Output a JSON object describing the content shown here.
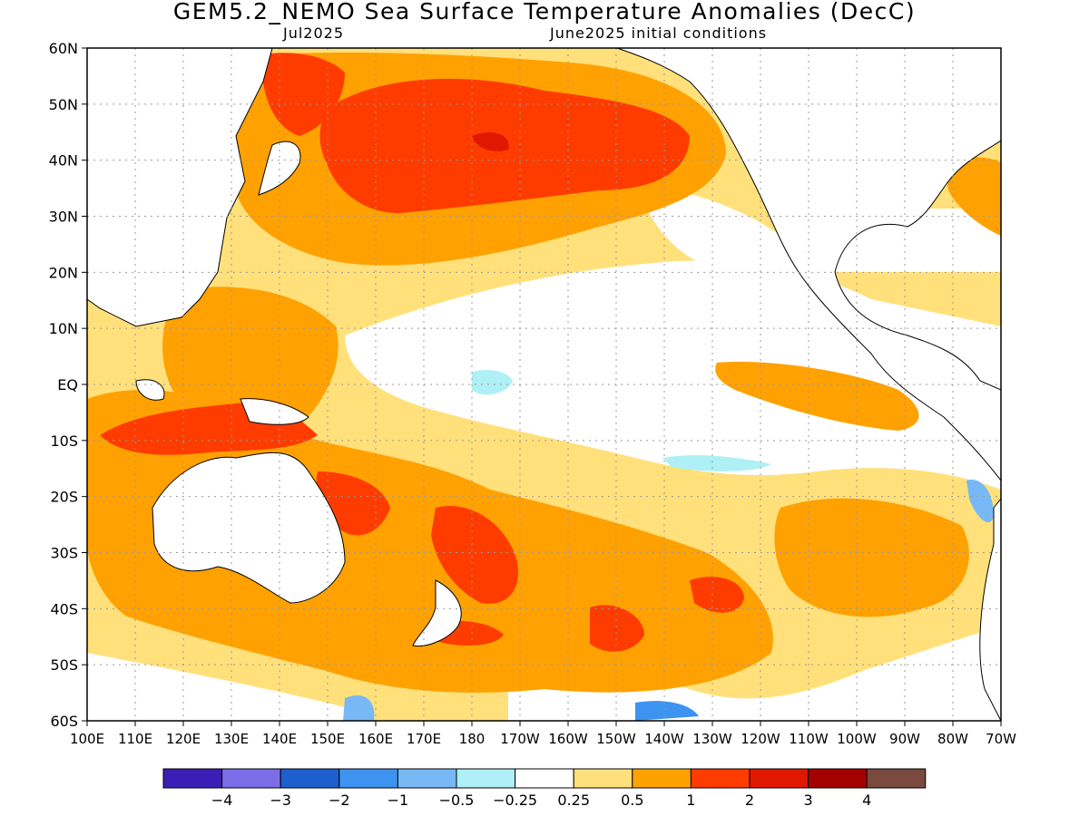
{
  "title": "GEM5.2_NEMO Sea Surface Temperature Anomalies (DecC)",
  "subtitle_left": "Jul2025",
  "subtitle_right": "June2025 initial conditions",
  "y_labels": [
    "60N",
    "50N",
    "40N",
    "30N",
    "20N",
    "10N",
    "EQ",
    "10S",
    "20S",
    "30S",
    "40S",
    "50S",
    "60S"
  ],
  "x_labels": [
    "100E",
    "110E",
    "120E",
    "130E",
    "140E",
    "150E",
    "160E",
    "170E",
    "180",
    "170W",
    "160W",
    "150W",
    "140W",
    "130W",
    "120W",
    "110W",
    "100W",
    "90W",
    "80W",
    "70W"
  ],
  "colorbar": {
    "colors": [
      "#3a1fb5",
      "#7b6ee8",
      "#1e5fd0",
      "#3d93f0",
      "#78b9f5",
      "#aef0f5",
      "#ffffff",
      "#ffe07a",
      "#ffa100",
      "#ff3c00",
      "#e01800",
      "#a50000",
      "#7a4a3e"
    ],
    "labels": [
      "−4",
      "−3",
      "−2",
      "−1",
      "−0.5",
      "−0.25",
      "0.25",
      "0.5",
      "1",
      "2",
      "3",
      "4"
    ]
  }
}
